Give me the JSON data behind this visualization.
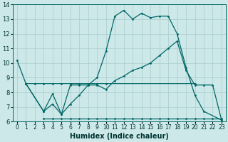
{
  "xlabel": "Humidex (Indice chaleur)",
  "bg_color": "#cce8e8",
  "grid_color": "#aacccc",
  "line_color": "#006666",
  "xlim": [
    -0.5,
    23.5
  ],
  "ylim": [
    6,
    14
  ],
  "yticks": [
    6,
    7,
    8,
    9,
    10,
    11,
    12,
    13,
    14
  ],
  "xticks": [
    0,
    1,
    2,
    3,
    4,
    5,
    6,
    7,
    8,
    9,
    10,
    11,
    12,
    13,
    14,
    15,
    16,
    17,
    18,
    19,
    20,
    21,
    22,
    23
  ],
  "line1_x": [
    0,
    1,
    2,
    3,
    4,
    5,
    6,
    7,
    8,
    9,
    10,
    20
  ],
  "line1_y": [
    10.2,
    8.6,
    8.6,
    8.6,
    8.6,
    8.6,
    8.6,
    8.6,
    8.6,
    8.6,
    8.6,
    8.6
  ],
  "line2_x": [
    3,
    4,
    5,
    6,
    7,
    8,
    9,
    10,
    11,
    12,
    13,
    14,
    15,
    16,
    17,
    18,
    19,
    20,
    21,
    22,
    23
  ],
  "line2_y": [
    6.2,
    6.2,
    6.2,
    6.2,
    6.2,
    6.2,
    6.2,
    6.2,
    6.2,
    6.2,
    6.2,
    6.2,
    6.2,
    6.2,
    6.2,
    6.2,
    6.2,
    6.2,
    6.2,
    6.2,
    6.2
  ],
  "line3_x": [
    1,
    3,
    4,
    5,
    6,
    7,
    8,
    9,
    10,
    11,
    12,
    13,
    14,
    15,
    16,
    17,
    18,
    19,
    20,
    21,
    23
  ],
  "line3_y": [
    8.6,
    6.7,
    7.9,
    6.5,
    8.5,
    8.5,
    8.5,
    9.0,
    10.8,
    13.2,
    13.6,
    13.0,
    13.4,
    13.1,
    13.2,
    13.2,
    12.0,
    9.7,
    7.8,
    6.7,
    6.1
  ],
  "line4_x": [
    1,
    3,
    4,
    5,
    6,
    7,
    8,
    9,
    10,
    11,
    12,
    13,
    14,
    15,
    16,
    17,
    18,
    19,
    20,
    21,
    22,
    23
  ],
  "line4_y": [
    8.6,
    6.7,
    7.2,
    6.5,
    7.2,
    7.8,
    8.5,
    8.5,
    8.2,
    8.8,
    9.1,
    9.5,
    9.7,
    10.0,
    10.5,
    11.0,
    11.5,
    9.5,
    8.5,
    8.5,
    8.5,
    6.1
  ]
}
